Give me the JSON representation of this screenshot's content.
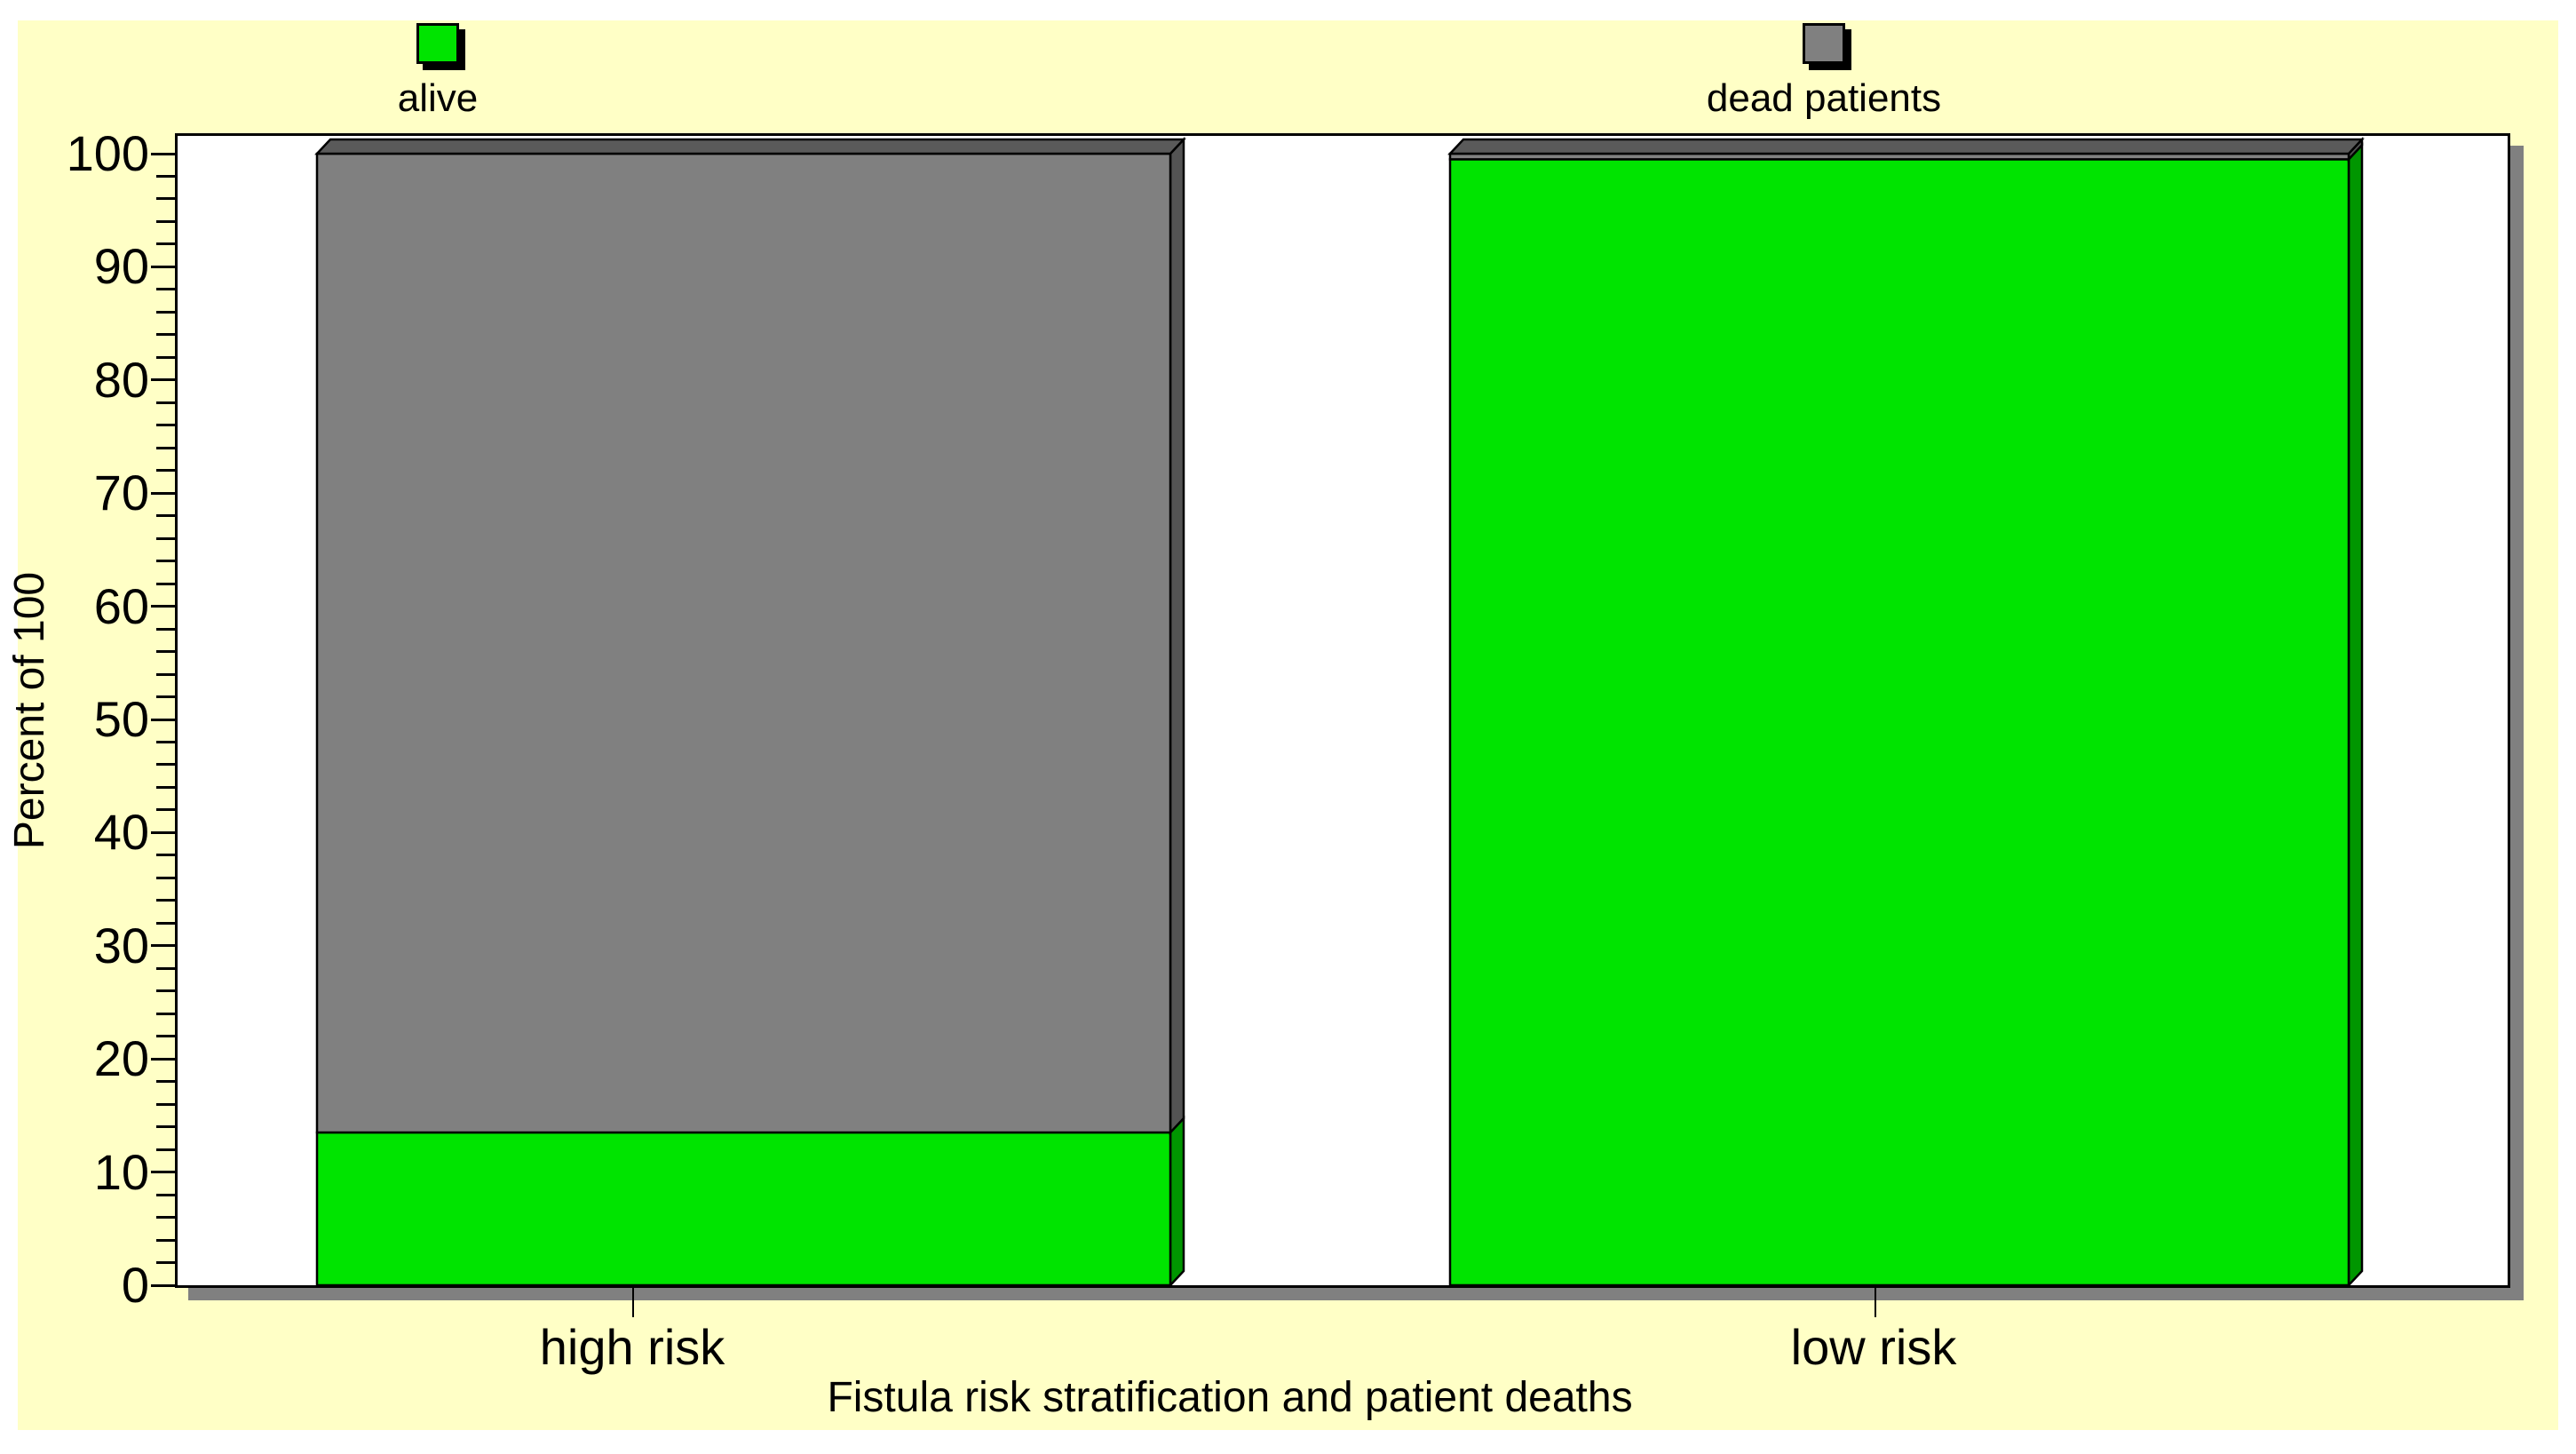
{
  "chart_data": {
    "type": "bar",
    "subtype": "stacked-3d-column",
    "stacked": true,
    "xlabel": "Fistula risk stratification and patient deaths",
    "ylabel": "Percent of 100",
    "categories": [
      "high risk",
      "low risk"
    ],
    "series": [
      {
        "name": "alive",
        "color": "#00E400",
        "values": [
          13.5,
          99.5
        ]
      },
      {
        "name": "dead patients",
        "color": "#808080",
        "values": [
          86.5,
          0.5
        ]
      }
    ],
    "ylim": [
      0,
      100
    ],
    "y_ticks": [
      0,
      10,
      20,
      30,
      40,
      50,
      60,
      70,
      80,
      90,
      100
    ],
    "y_minor_tick_step": 2,
    "legend_position": "top",
    "grid": false,
    "background_color": "#FFFFC6",
    "plot_background_color": "#FFFFFF",
    "shadow_color": "#808080",
    "outline_color": "#000000"
  }
}
